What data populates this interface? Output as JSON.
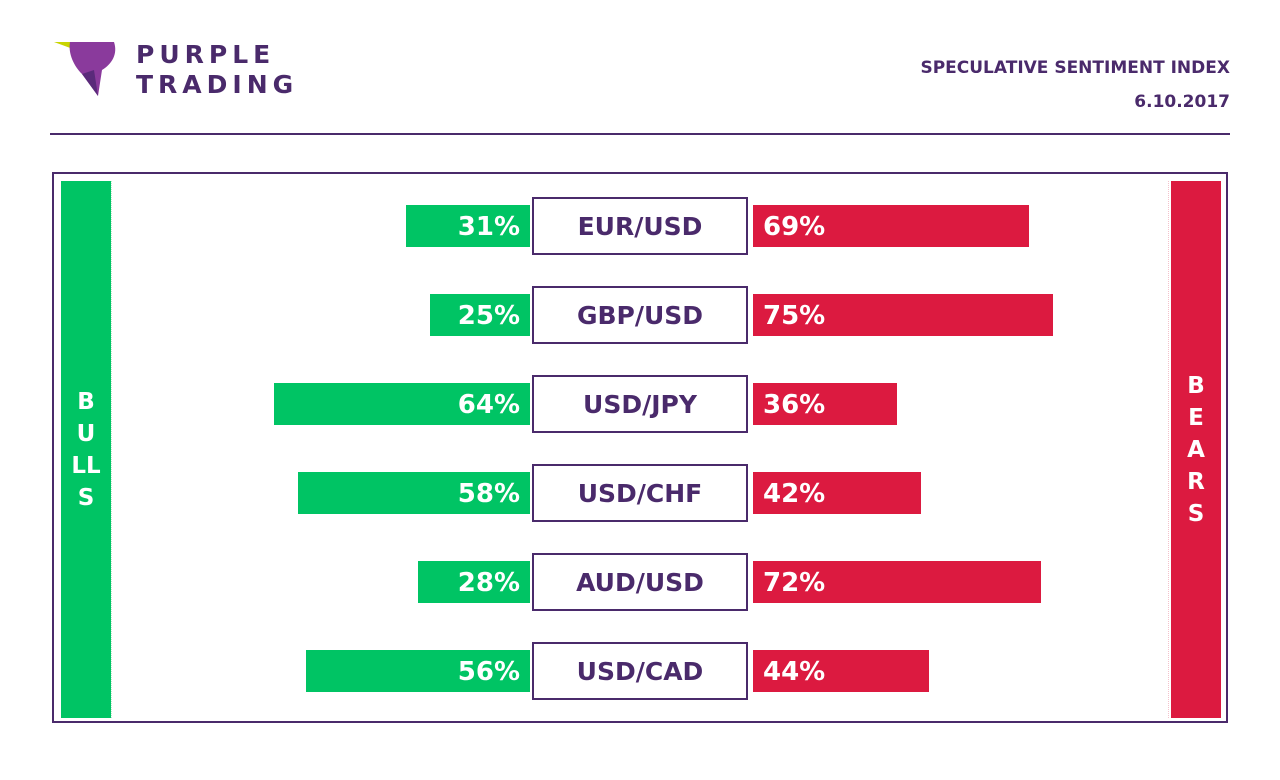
{
  "brand": {
    "line1": "PURPLE",
    "line2": "TRADING",
    "colors": {
      "purple": "#4a2a6b",
      "purple_light": "#8a3a9c",
      "yellow_green": "#c8d400"
    }
  },
  "header": {
    "title": "SPECULATIVE SENTIMENT INDEX",
    "date": "6.10.2017"
  },
  "sides": {
    "bulls": "BULLS",
    "bears": "BEARS"
  },
  "colors": {
    "bulls": "#00c464",
    "bears": "#dc1a40",
    "frame": "#4a2a6b"
  },
  "chart_data": {
    "type": "bar",
    "categories": [
      "EUR/USD",
      "GBP/USD",
      "USD/JPY",
      "USD/CHF",
      "AUD/USD",
      "USD/CAD"
    ],
    "series": [
      {
        "name": "BULLS",
        "values": [
          31,
          25,
          64,
          58,
          28,
          56
        ]
      },
      {
        "name": "BEARS",
        "values": [
          69,
          75,
          36,
          42,
          72,
          44
        ]
      }
    ],
    "labels": {
      "bulls": [
        "31%",
        "25%",
        "64%",
        "58%",
        "28%",
        "56%"
      ],
      "bears": [
        "69%",
        "75%",
        "36%",
        "42%",
        "72%",
        "44%"
      ]
    }
  }
}
